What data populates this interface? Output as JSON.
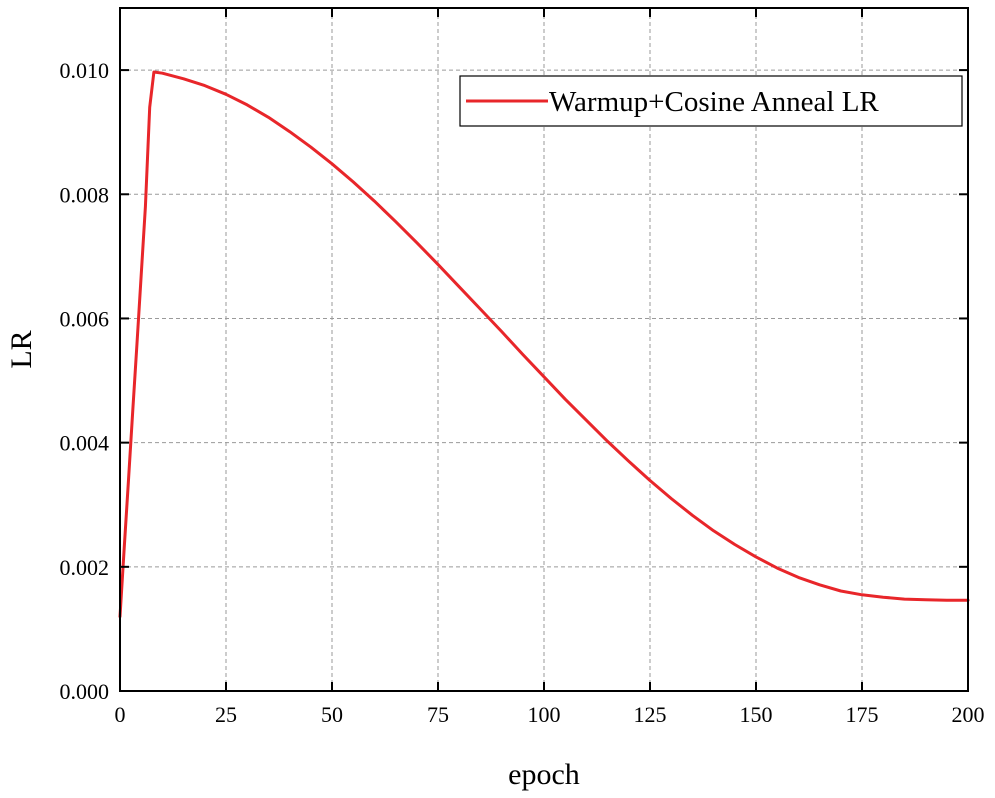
{
  "chart_data": {
    "type": "line",
    "title": "",
    "xlabel": "epoch",
    "ylabel": "LR",
    "xlim": [
      0,
      200
    ],
    "ylim": [
      0,
      0.011
    ],
    "xticks": [
      0,
      25,
      50,
      75,
      100,
      125,
      150,
      175,
      200
    ],
    "xtick_labels": [
      "0",
      "25",
      "50",
      "75",
      "100",
      "125",
      "150",
      "175",
      "200"
    ],
    "yticks": [
      0,
      0.002,
      0.004,
      0.006,
      0.008,
      0.01
    ],
    "ytick_labels": [
      "0.000",
      "0.002",
      "0.004",
      "0.006",
      "0.008",
      "0.010"
    ],
    "grid": true,
    "legend_position": "top-right",
    "series": [
      {
        "name": "Warmup+Cosine Anneal LR",
        "color": "#e8262a",
        "x": [
          0,
          1,
          2,
          3,
          4,
          5,
          6,
          7,
          8,
          10,
          15,
          20,
          25,
          30,
          35,
          40,
          45,
          50,
          55,
          60,
          65,
          70,
          75,
          80,
          85,
          90,
          95,
          100,
          105,
          110,
          115,
          120,
          125,
          130,
          135,
          140,
          145,
          150,
          155,
          160,
          165,
          170,
          175,
          180,
          185,
          190,
          195,
          200
        ],
        "y": [
          0.0012,
          0.0023,
          0.0034,
          0.0045,
          0.0056,
          0.0067,
          0.0078,
          0.0094,
          0.00997,
          0.00995,
          0.00986,
          0.00975,
          0.00961,
          0.00944,
          0.00924,
          0.00901,
          0.00876,
          0.00849,
          0.0082,
          0.00789,
          0.00756,
          0.00722,
          0.00687,
          0.00651,
          0.00615,
          0.00579,
          0.00542,
          0.00506,
          0.0047,
          0.00436,
          0.00402,
          0.0037,
          0.00339,
          0.0031,
          0.00283,
          0.00258,
          0.00236,
          0.00216,
          0.00198,
          0.00183,
          0.00171,
          0.00161,
          0.00155,
          0.00151,
          0.00148,
          0.00147,
          0.00146,
          0.00146
        ]
      }
    ]
  }
}
